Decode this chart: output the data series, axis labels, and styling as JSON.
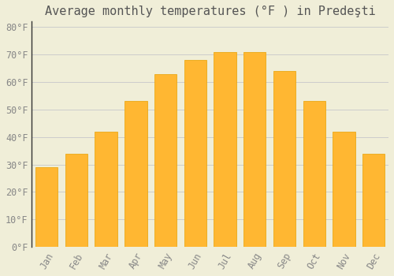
{
  "title": "Average monthly temperatures (°F ) in Predeşti",
  "months": [
    "Jan",
    "Feb",
    "Mar",
    "Apr",
    "May",
    "Jun",
    "Jul",
    "Aug",
    "Sep",
    "Oct",
    "Nov",
    "Dec"
  ],
  "values": [
    29,
    34,
    42,
    53,
    63,
    68,
    71,
    71,
    64,
    53,
    42,
    34
  ],
  "bar_color_top": "#FFB732",
  "bar_color_bottom": "#FF9500",
  "bar_edge_color": "#E8A000",
  "background_color": "#F0EED8",
  "ylim": [
    0,
    82
  ],
  "yticks": [
    0,
    10,
    20,
    30,
    40,
    50,
    60,
    70,
    80
  ],
  "grid_color": "#CCCCCC",
  "title_fontsize": 11,
  "tick_fontsize": 8.5,
  "bar_width": 0.75
}
